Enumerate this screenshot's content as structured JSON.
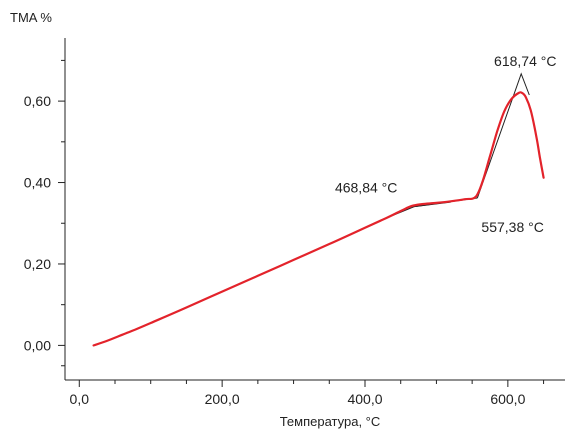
{
  "chart_data": {
    "type": "line",
    "ylabel": "TMA %",
    "xlabel": "Температура, °C",
    "xlim": [
      -20,
      680
    ],
    "ylim": [
      -0.085,
      0.755
    ],
    "x_ticks_major": [
      0,
      200,
      400,
      600
    ],
    "x_tick_labels": [
      "0,0",
      "200,0",
      "400,0",
      "600,0"
    ],
    "x_ticks_minor": [
      50,
      100,
      150,
      250,
      300,
      350,
      450,
      500,
      550,
      650
    ],
    "y_ticks_major": [
      0.0,
      0.2,
      0.4,
      0.6
    ],
    "y_tick_labels": [
      "0,00",
      "0,20",
      "0,40",
      "0,60"
    ],
    "y_ticks_minor": [
      -0.05,
      0.1,
      0.3,
      0.5,
      0.7
    ],
    "series": [
      {
        "color": "#e3232b",
        "x": [
          20,
          40,
          60,
          80,
          100,
          150,
          200,
          250,
          300,
          350,
          400,
          430,
          450,
          465,
          480,
          500,
          520,
          540,
          555,
          565,
          575,
          585,
          595,
          605,
          615,
          620,
          625,
          632,
          640,
          645,
          650
        ],
        "y": [
          0.0,
          0.012,
          0.026,
          0.04,
          0.055,
          0.093,
          0.132,
          0.171,
          0.21,
          0.249,
          0.289,
          0.313,
          0.33,
          0.342,
          0.347,
          0.35,
          0.354,
          0.359,
          0.365,
          0.405,
          0.465,
          0.525,
          0.575,
          0.605,
          0.62,
          0.62,
          0.61,
          0.578,
          0.512,
          0.46,
          0.412
        ]
      }
    ],
    "tangent_lines": [
      {
        "color": "#222222",
        "x": [
          430,
          468.84,
          520
        ],
        "y": [
          0.313,
          0.341,
          0.352
        ]
      },
      {
        "color": "#222222",
        "x": [
          468.84,
          557.38
        ],
        "y": [
          0.341,
          0.362
        ]
      },
      {
        "color": "#222222",
        "x": [
          557.38,
          618.74,
          630
        ],
        "y": [
          0.362,
          0.667,
          0.615
        ]
      }
    ],
    "annotations": [
      {
        "text": "468,84 °C",
        "x": 468.84,
        "y": 0.341,
        "anchor": "above-left"
      },
      {
        "text": "557,38 °C",
        "x": 557.38,
        "y": 0.362,
        "anchor": "below-right"
      },
      {
        "text": "618,74 °C",
        "x": 618.74,
        "y": 0.667,
        "anchor": "above"
      }
    ],
    "grid": false
  }
}
